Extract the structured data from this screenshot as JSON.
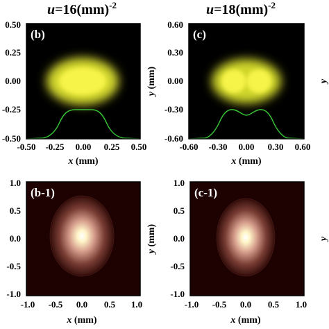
{
  "titles": {
    "left": {
      "var": "u",
      "text": "=16(mm)",
      "sup": "-2"
    },
    "right": {
      "var": "u",
      "text": "=18(mm)",
      "sup": "-2"
    }
  },
  "panels": {
    "b": {
      "label": "(b)",
      "xlabel_var": "x",
      "xlabel_unit": " (mm)",
      "xticks": [
        "-0.50",
        "-0.25",
        "0.00",
        "0.25",
        "0.50"
      ],
      "yticks": [
        "0.50",
        "0.25",
        "0.00",
        "-0.25",
        "-0.50"
      ]
    },
    "c": {
      "label": "(c)",
      "xlabel_var": "x",
      "xlabel_unit": " (mm)",
      "ylabel_var": "y",
      "ylabel_unit": " (mm)",
      "xticks": [
        "-0.60",
        "-0.30",
        "0.00",
        "0.30",
        "0.60"
      ],
      "yticks": [
        "0.60",
        "0.30",
        "0.00",
        "-0.30",
        "-0.60"
      ]
    },
    "b1": {
      "label": "(b-1)",
      "xlabel_var": "x",
      "xlabel_unit": " (mm)",
      "xticks": [
        "-1.0",
        "-0.5",
        "0.0",
        "0.5",
        "1.0"
      ],
      "yticks": [
        "1.0",
        "0.5",
        "0.0",
        "-0.5",
        "-1.0"
      ]
    },
    "c1": {
      "label": "(c-1)",
      "xlabel_var": "x",
      "xlabel_unit": " (mm)",
      "ylabel_var": "y",
      "ylabel_unit": " (mm)",
      "xticks": [
        "-1.0",
        "-0.5",
        "0.0",
        "0.5",
        "1.0"
      ],
      "yticks": [
        "1.0",
        "0.5",
        "0.0",
        "-0.5",
        "-1.0"
      ]
    }
  },
  "colors": {
    "plot_bg": "#000000",
    "beam_core": "#f5f03c",
    "beam_edge": "#3a8a1e",
    "profile_line": "#36c436",
    "halo_core": "#ffffff",
    "halo_mid": "#c9908a",
    "halo_bg": "#1e0202"
  }
}
